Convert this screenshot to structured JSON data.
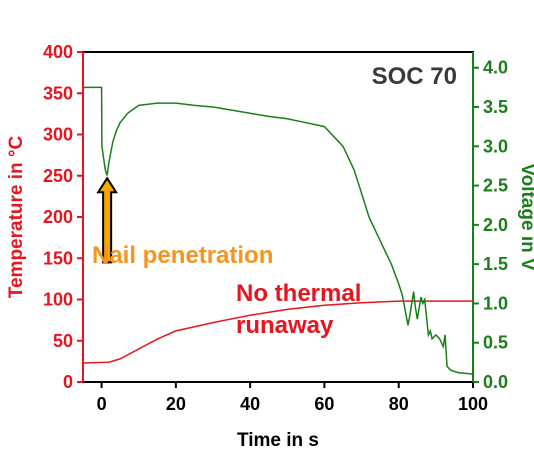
{
  "chart_data": {
    "type": "line",
    "title": "",
    "xlabel": "Time in s",
    "ylabel_left": "Temperature in °C",
    "ylabel_right": "Voltage in V",
    "xlim": [
      -5,
      100
    ],
    "ylim_left": [
      0,
      400
    ],
    "ylim_right": [
      0,
      4.2
    ],
    "x_ticks": [
      "0",
      "20",
      "40",
      "60",
      "80",
      "100"
    ],
    "y_left_ticks": [
      "0",
      "50",
      "100",
      "150",
      "200",
      "250",
      "300",
      "350",
      "400"
    ],
    "y_right_ticks": [
      "0.0",
      "0.5",
      "1.0",
      "1.5",
      "2.0",
      "2.5",
      "3.0",
      "3.5",
      "4.0"
    ],
    "grid": false,
    "colors": {
      "temperature": "#e8141e",
      "voltage": "#1a7f1a",
      "nail_label": "#f7941d",
      "arrow_fill": "#f5a800"
    },
    "series": [
      {
        "axis": "left",
        "x": [
          -5,
          2,
          5,
          10,
          15,
          20,
          30,
          40,
          50,
          60,
          70,
          80,
          90,
          100
        ],
        "values": [
          23,
          24,
          28,
          40,
          52,
          62,
          72,
          81,
          88,
          93,
          96,
          98,
          98,
          98
        ]
      },
      {
        "axis": "right",
        "x": [
          -5,
          0,
          0.1,
          1,
          1.5,
          2,
          3,
          4,
          5,
          7,
          10,
          15,
          20,
          25,
          30,
          35,
          40,
          45,
          50,
          55,
          60,
          65,
          68,
          70,
          72,
          75,
          78,
          80,
          81,
          82,
          82.5,
          83,
          84,
          84.5,
          85,
          86,
          86.5,
          87,
          88,
          88.5,
          89,
          90,
          91,
          92,
          92.5,
          93,
          94,
          96,
          100
        ],
        "values": [
          3.75,
          3.75,
          3.0,
          2.7,
          2.63,
          2.8,
          3.05,
          3.2,
          3.3,
          3.42,
          3.52,
          3.55,
          3.55,
          3.52,
          3.5,
          3.46,
          3.42,
          3.38,
          3.35,
          3.3,
          3.25,
          3.0,
          2.7,
          2.4,
          2.1,
          1.8,
          1.5,
          1.25,
          1.1,
          0.85,
          0.72,
          0.85,
          1.15,
          0.95,
          0.8,
          1.08,
          1.0,
          1.05,
          0.6,
          0.65,
          0.55,
          0.6,
          0.55,
          0.45,
          0.6,
          0.2,
          0.15,
          0.12,
          0.1
        ]
      }
    ],
    "annotations": {
      "corner_label": "SOC 70",
      "nail_label": "Nail penetration",
      "runaway_line1": "No thermal",
      "runaway_line2": "runaway"
    },
    "arrow": {
      "x": 1.5,
      "from_temp": 100,
      "to_temp": 250
    }
  }
}
